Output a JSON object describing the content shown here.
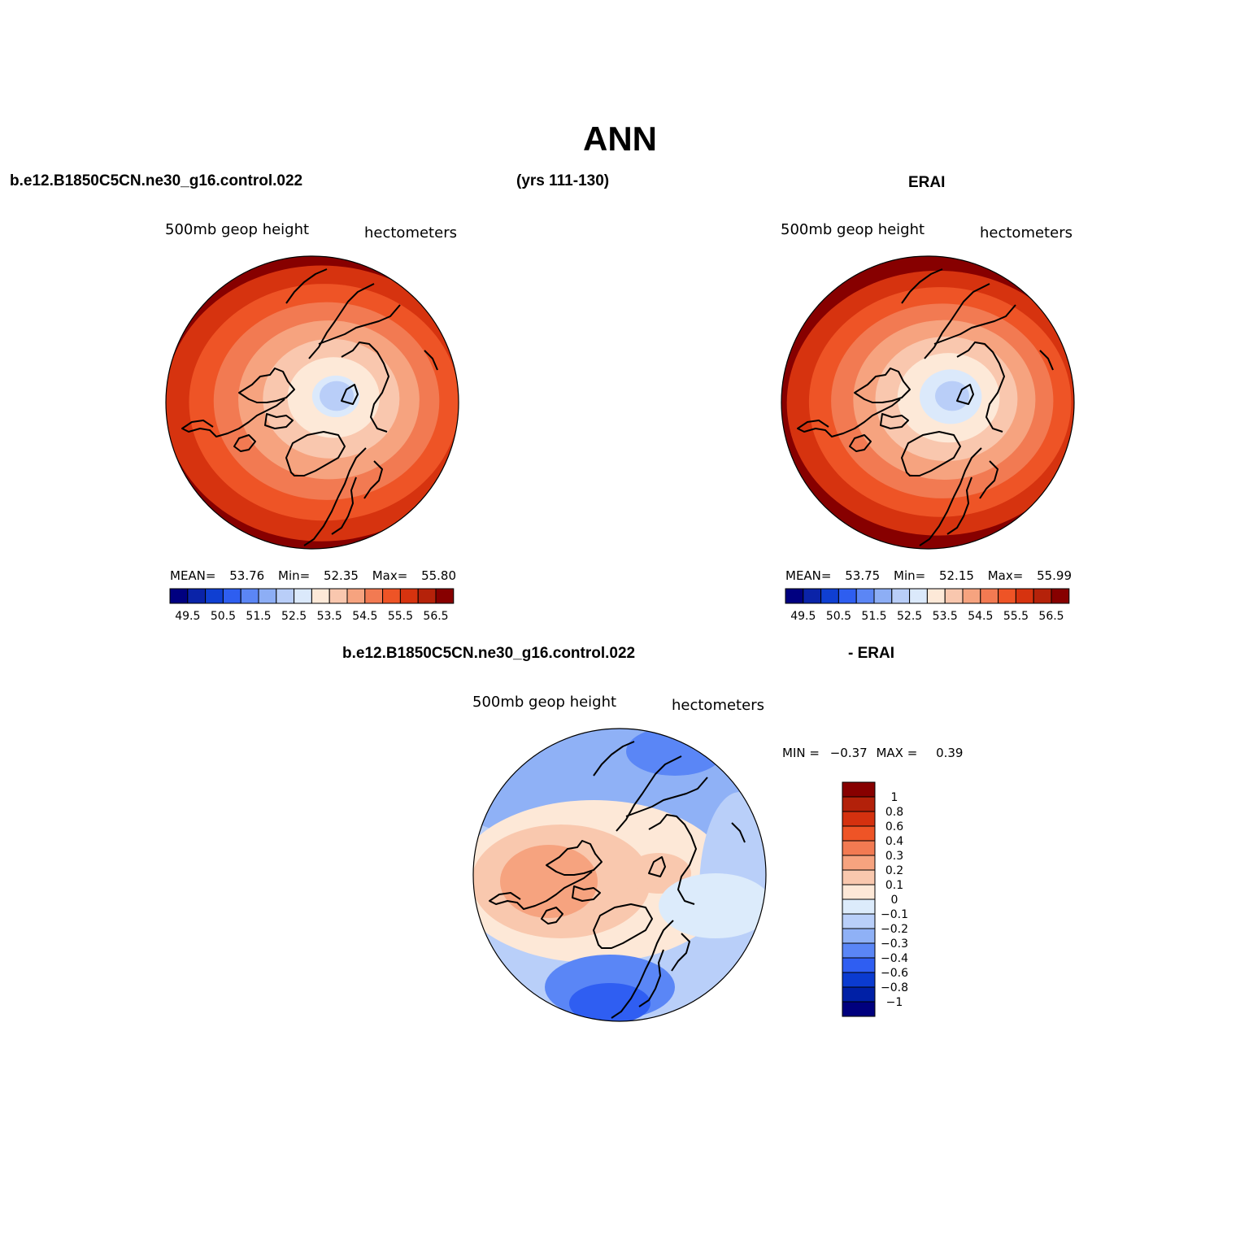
{
  "page_title": "ANN",
  "header": {
    "case_name": "b.e12.B1850C5CN.ne30_g16.control.022",
    "years": "(yrs 111-130)",
    "obs_name": "ERAI"
  },
  "diff_header": {
    "case_name": "b.e12.B1850C5CN.ne30_g16.control.022",
    "suffix": "- ERAI"
  },
  "colors": {
    "sequential": [
      "#000080",
      "#0a23a8",
      "#0f3fd2",
      "#2e5ef0",
      "#5b86f5",
      "#8daef5",
      "#b9cef8",
      "#dbe9fb",
      "#fde9d8",
      "#f9c7ae",
      "#f6a37f",
      "#f27a52",
      "#ee5426",
      "#d6330f",
      "#b5220a",
      "#870000"
    ],
    "diverging": [
      "#00007e",
      "#0020a6",
      "#0b3bd0",
      "#2f5ef2",
      "#5a86f6",
      "#8fb1f6",
      "#b9cff9",
      "#dcebfb",
      "#fde8d7",
      "#f9c8ae",
      "#f6a37f",
      "#f27a52",
      "#ee5426",
      "#d4310f",
      "#b3210a",
      "#870000"
    ],
    "coast": "#000000"
  },
  "chart_data": [
    {
      "type": "heatmap",
      "projection": "north polar stereographic",
      "panel": "model",
      "title": "500mb geop height",
      "units": "hectometers",
      "stats": {
        "mean_label": "MEAN=",
        "mean": "53.76",
        "min_label": "Min=",
        "min": "52.35",
        "max_label": "Max=",
        "max": "55.80"
      },
      "colorbar_labels": [
        "49.5",
        "50.5",
        "51.5",
        "52.5",
        "53.5",
        "54.5",
        "55.5",
        "56.5"
      ],
      "colorbar_levels": 16,
      "field": {
        "pole_value": 52.35,
        "edge_value": 55.8
      }
    },
    {
      "type": "heatmap",
      "projection": "north polar stereographic",
      "panel": "obs",
      "title": "500mb geop height",
      "units": "hectometers",
      "stats": {
        "mean_label": "MEAN=",
        "mean": "53.75",
        "min_label": "Min=",
        "min": "52.15",
        "max_label": "Max=",
        "max": "55.99"
      },
      "colorbar_labels": [
        "49.5",
        "50.5",
        "51.5",
        "52.5",
        "53.5",
        "54.5",
        "55.5",
        "56.5"
      ],
      "colorbar_levels": 16,
      "field": {
        "pole_value": 52.15,
        "edge_value": 55.99
      }
    },
    {
      "type": "heatmap",
      "projection": "north polar stereographic",
      "panel": "difference",
      "title": "500mb geop height",
      "units": "hectometers",
      "stats": {
        "min_label": "MIN =",
        "min": "−0.37",
        "max_label": "MAX =",
        "max": "0.39"
      },
      "colorbar_labels": [
        "1",
        "0.8",
        "0.6",
        "0.4",
        "0.3",
        "0.2",
        "0.1",
        "0",
        "−0.1",
        "−0.2",
        "−0.3",
        "−0.4",
        "−0.6",
        "−0.8",
        "−1"
      ],
      "colorbar_levels": 16,
      "field": {
        "min": -0.37,
        "max": 0.39
      }
    }
  ]
}
